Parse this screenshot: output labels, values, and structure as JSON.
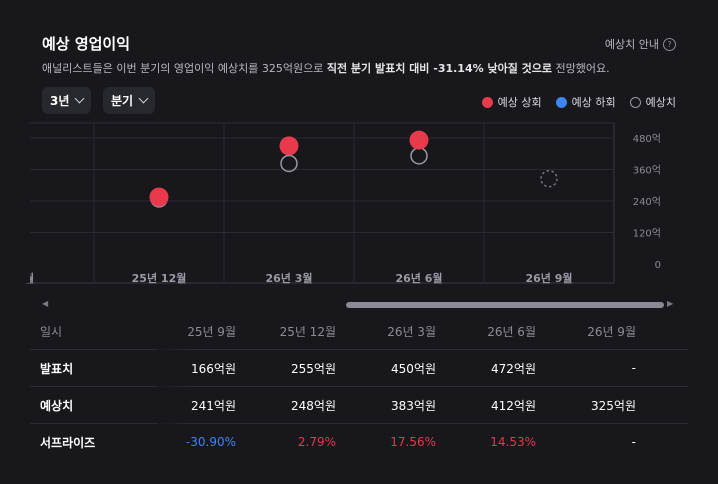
{
  "header": {
    "title": "예상 영업이익",
    "guide_label": "예상치 안내",
    "desc_prefix": "애널리스트들은 이번 분기의 영업이익 예상치를 325억원으로 ",
    "desc_bold": "직전 분기 발표치 대비 -31.14% 낮아질 것으로",
    "desc_suffix": " 전망했어요."
  },
  "filters": {
    "period": "3년",
    "unit": "분기"
  },
  "legend": [
    {
      "label": "예상 상회",
      "color": "#e8394d",
      "style": "filled"
    },
    {
      "label": "예상 하회",
      "color": "#3d86f0",
      "style": "filled"
    },
    {
      "label": "예상치",
      "color": "#9a9aa4",
      "style": "ring"
    }
  ],
  "chart_data": {
    "type": "scatter",
    "categories": [
      "25년 9월",
      "25년 12월",
      "26년 3월",
      "26년 6월",
      "26년 9월"
    ],
    "x_tick_labels": [
      "월",
      "25년 12월",
      "26년 3월",
      "26년 6월",
      "26년 9월"
    ],
    "series": [
      {
        "name": "발표치",
        "values": [
          166,
          255,
          450,
          472,
          null
        ]
      },
      {
        "name": "예상치",
        "values": [
          241,
          248,
          383,
          412,
          325
        ]
      }
    ],
    "y_ticks": [
      "480억",
      "360억",
      "240억",
      "120억",
      "0"
    ],
    "ylim": [
      0,
      480
    ],
    "grid": true,
    "colors": {
      "above": "#e8394d",
      "below": "#3d86f0",
      "estimate": "#9a9aa4"
    }
  },
  "table": {
    "header_label": "일시",
    "columns": [
      "25년 9월",
      "25년 12월",
      "26년 3월",
      "26년 6월",
      "26년 9월"
    ],
    "rows": [
      {
        "label": "발표치",
        "cells": [
          "166억원",
          "255억원",
          "450억원",
          "472억원",
          "-"
        ]
      },
      {
        "label": "예상치",
        "cells": [
          "241억원",
          "248억원",
          "383억원",
          "412억원",
          "325억원"
        ]
      },
      {
        "label": "서프라이즈",
        "cells": [
          "-30.90%",
          "2.79%",
          "17.56%",
          "14.53%",
          "-"
        ],
        "tones": [
          "neg",
          "pos",
          "pos",
          "pos",
          ""
        ]
      }
    ]
  }
}
